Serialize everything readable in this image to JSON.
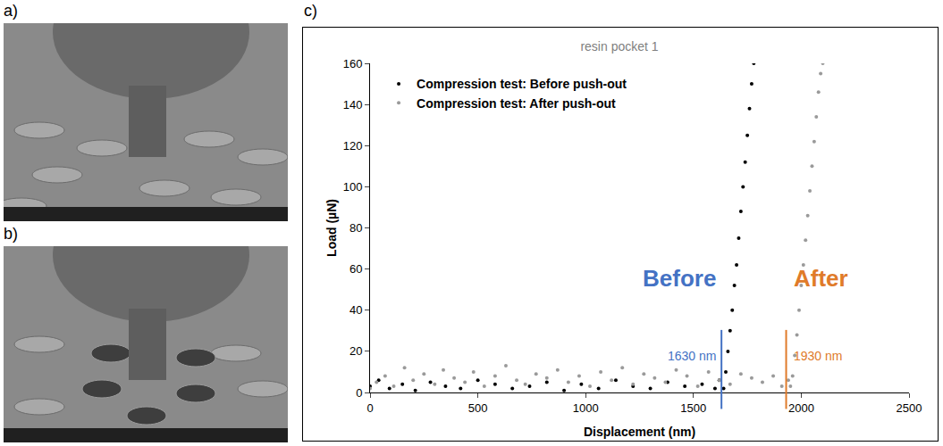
{
  "panel_labels": [
    "a)",
    "b)",
    "c)"
  ],
  "chart_data": {
    "type": "scatter",
    "title": "resin pocket 1",
    "x_label": "Displacement (nm)",
    "y_label": "Load (µN)",
    "xlim": [
      0,
      2500
    ],
    "xticks": [
      0,
      500,
      1000,
      1500,
      2000,
      2500
    ],
    "ylim": [
      0,
      160
    ],
    "yticks": [
      0,
      20,
      40,
      60,
      80,
      100,
      120,
      140,
      160
    ],
    "grid": false,
    "legend": "top-left",
    "series": [
      {
        "name": "Compression test: Before push-out",
        "color": "#000000",
        "marker": "circle",
        "x": [
          0,
          40,
          90,
          150,
          210,
          280,
          350,
          420,
          500,
          580,
          660,
          740,
          820,
          900,
          980,
          1060,
          1140,
          1220,
          1300,
          1380,
          1460,
          1540,
          1600,
          1620,
          1640,
          1650,
          1660,
          1670,
          1680,
          1690,
          1700,
          1710,
          1720,
          1730,
          1740,
          1750,
          1760,
          1770,
          1780
        ],
        "values": [
          3,
          6,
          2,
          4,
          1,
          5,
          3,
          2,
          6,
          4,
          2,
          3,
          5,
          1,
          4,
          2,
          6,
          3,
          2,
          5,
          3,
          4,
          2,
          6,
          2,
          10,
          20,
          30,
          40,
          52,
          62,
          75,
          88,
          100,
          112,
          125,
          138,
          150,
          160
        ]
      },
      {
        "name": "Compression test: After push-out",
        "color": "#9a9a9a",
        "marker": "circle",
        "x": [
          0,
          30,
          70,
          110,
          160,
          200,
          250,
          300,
          340,
          390,
          440,
          480,
          530,
          580,
          630,
          680,
          720,
          770,
          820,
          870,
          920,
          970,
          1020,
          1070,
          1120,
          1170,
          1220,
          1270,
          1320,
          1370,
          1420,
          1470,
          1520,
          1570,
          1620,
          1670,
          1720,
          1770,
          1820,
          1870,
          1910,
          1940,
          1950,
          1960,
          1970,
          1980,
          1990,
          2000,
          2010,
          2020,
          2030,
          2040,
          2050,
          2060,
          2070,
          2080,
          2090,
          2100
        ],
        "values": [
          2,
          5,
          8,
          3,
          12,
          6,
          9,
          4,
          11,
          7,
          5,
          10,
          3,
          8,
          13,
          6,
          4,
          9,
          7,
          11,
          5,
          8,
          3,
          10,
          6,
          12,
          4,
          9,
          7,
          5,
          11,
          8,
          3,
          10,
          6,
          4,
          9,
          7,
          5,
          8,
          3,
          6,
          3,
          8,
          18,
          28,
          40,
          52,
          62,
          74,
          86,
          98,
          110,
          122,
          134,
          146,
          155,
          160
        ]
      }
    ],
    "annotations": [
      {
        "text": "Before",
        "value_label": "1630 nm",
        "x": 1630,
        "color": "#4472c4"
      },
      {
        "text": "After",
        "value_label": "1930 nm",
        "x": 1930,
        "color": "#e07b2a"
      }
    ]
  }
}
